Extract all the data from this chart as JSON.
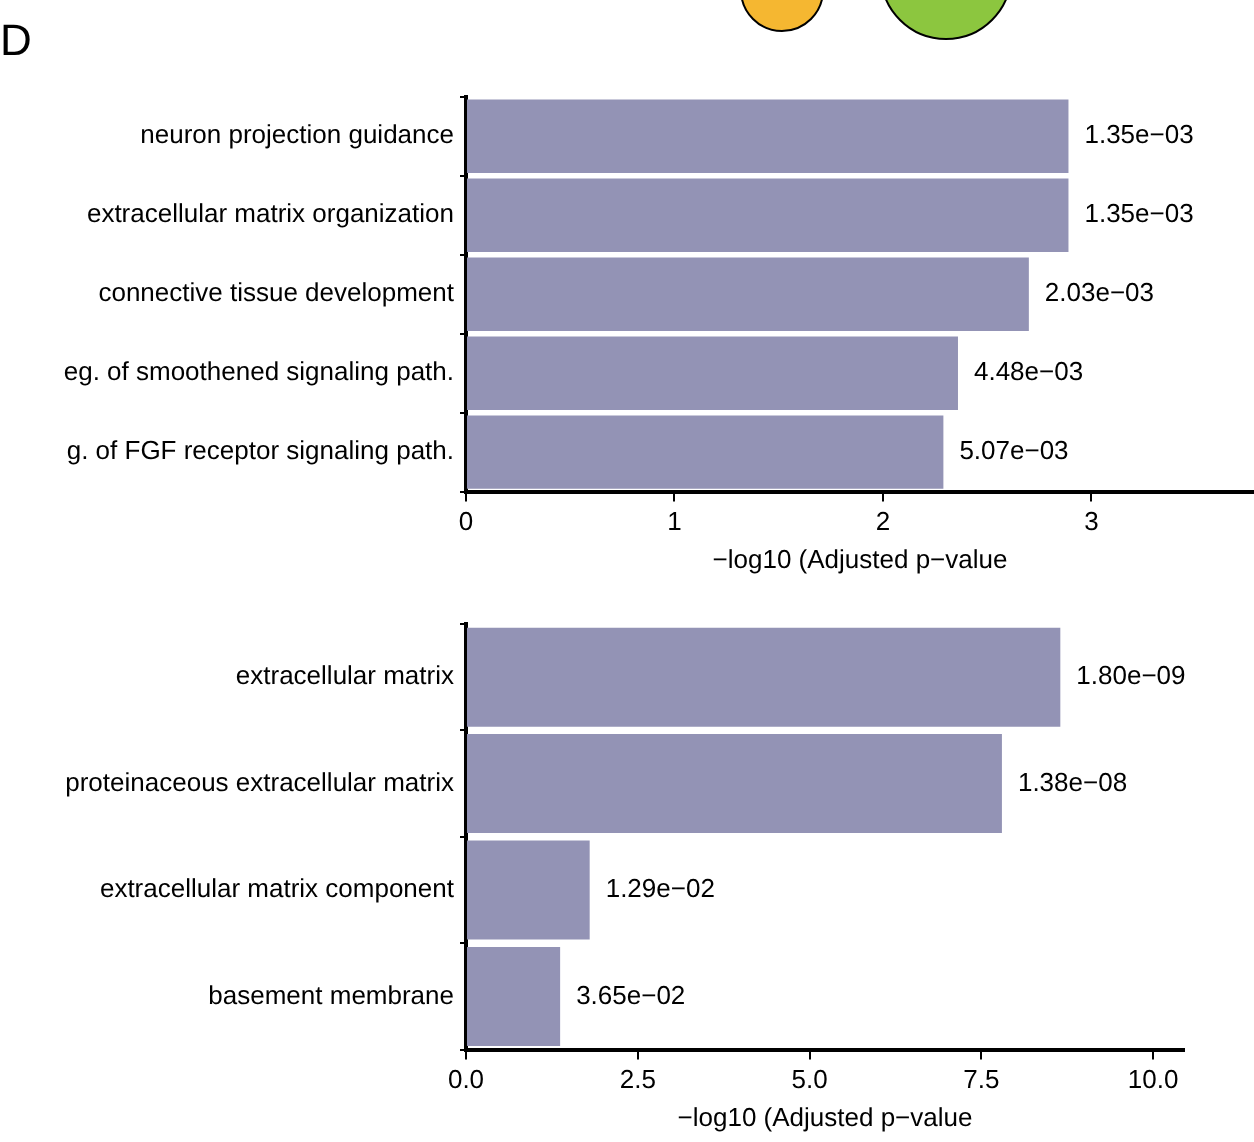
{
  "chart_data": [
    {
      "type": "bar",
      "title": "D",
      "orientation": "horizontal",
      "categories": [
        "neuron projection guidance",
        "extracellular matrix organization",
        "connective tissue development",
        "eg. of smoothened signaling path.",
        "g. of FGF receptor signaling path."
      ],
      "values": [
        2.89,
        2.89,
        2.7,
        2.36,
        2.29
      ],
      "color": "#9393b5",
      "annotations": [
        {
          "text": "1.35e−03",
          "x": 2.89,
          "y": "neuron projection guidance"
        },
        {
          "text": "1.35e−03",
          "x": 2.89,
          "y": "extracellular matrix organization"
        },
        {
          "text": "2.03e−03",
          "x": 2.7,
          "y": "connective tissue development"
        },
        {
          "text": "4.48e−03",
          "x": 2.36,
          "y": "eg. of smoothened signaling path."
        },
        {
          "text": "5.07e−03",
          "x": 2.29,
          "y": "g. of FGF receptor signaling path."
        }
      ],
      "xlabel": "−log10 (Adjusted p−value",
      "xlim": [
        0,
        3.78
      ],
      "xticks": [
        0,
        1,
        2,
        3
      ],
      "grid": false,
      "legend": false
    },
    {
      "type": "bar",
      "orientation": "horizontal",
      "categories": [
        "extracellular matrix",
        "proteinaceous extracellular matrix",
        "extracellular matrix component",
        "basement membrane"
      ],
      "values": [
        8.65,
        7.8,
        1.8,
        1.37
      ],
      "color": "#9393b5",
      "annotations": [
        {
          "text": "1.80e−09",
          "x": 8.65,
          "y": "extracellular matrix"
        },
        {
          "text": "1.38e−08",
          "x": 7.8,
          "y": "proteinaceous extracellular matrix"
        },
        {
          "text": "1.29e−02",
          "x": 1.8,
          "y": "extracellular matrix component"
        },
        {
          "text": "3.65e−02",
          "x": 1.37,
          "y": "basement membrane"
        }
      ],
      "xlabel": "−log10 (Adjusted p−value",
      "xlim": [
        0,
        10.45
      ],
      "xticks": [
        {
          "value": 0,
          "label": "0.0"
        },
        {
          "value": 2.5,
          "label": "2.5"
        },
        {
          "value": 5,
          "label": "5.0"
        },
        {
          "value": 7.5,
          "label": "7.5"
        },
        {
          "value": 10,
          "label": "10.0"
        }
      ],
      "grid": false,
      "legend": false
    }
  ]
}
